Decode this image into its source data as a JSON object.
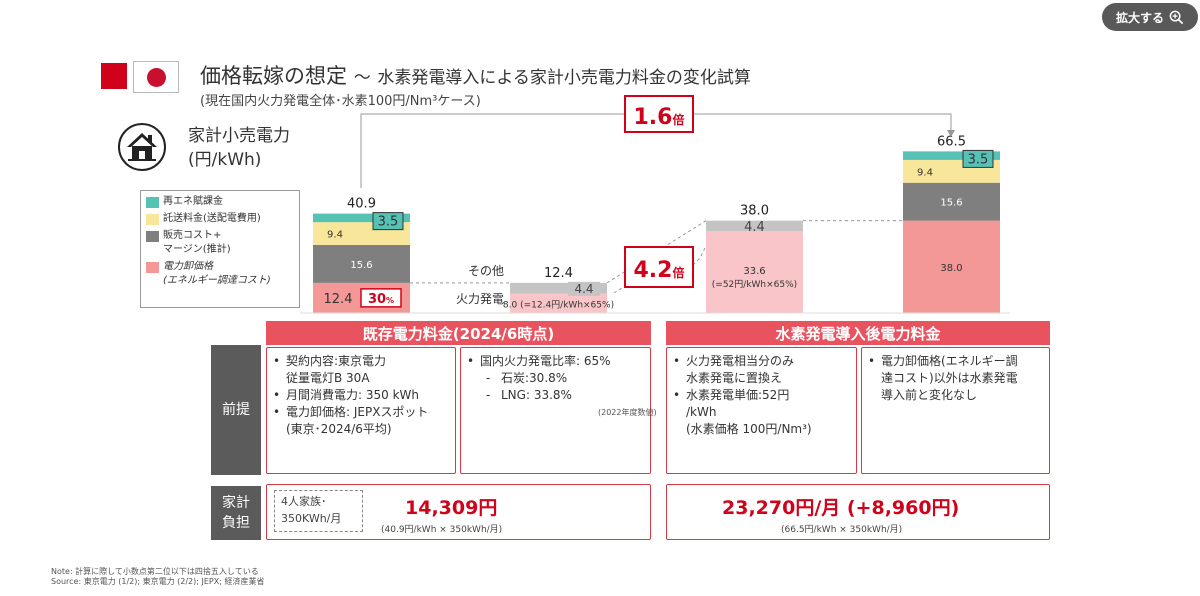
{
  "zoom_button": {
    "label": "拡大する"
  },
  "title": {
    "main": "価格転嫁の想定",
    "sep": "～",
    "sub": "水素発電導入による家計小売電力料金の変化試算"
  },
  "subtitle": "(現在国内火力発電全体･水素100円/Nm³ケース)",
  "unit_label": {
    "line1": "家計小売電力",
    "line2": "(円/kWh)"
  },
  "legend": [
    {
      "label": "再エネ賦課金",
      "color": "#56c1b5"
    },
    {
      "label": "託送料金(送配電費用)",
      "color": "#f8e69a"
    },
    {
      "label": "販売コスト+\nマージン(推計)",
      "color": "#7f7f7f"
    },
    {
      "label": "電力卸価格\n(エネルギー調達コスト)",
      "color": "#f39797"
    }
  ],
  "chart_data": {
    "type": "bar",
    "stacked": true,
    "bars": [
      {
        "total_label": "40.9",
        "segments": [
          {
            "series": "電力卸価格",
            "value": 12.4,
            "label": "12.4"
          },
          {
            "series": "販売コスト+マージン",
            "value": 15.6,
            "label": "15.6"
          },
          {
            "series": "託送料金",
            "value": 9.4,
            "label": "9.4"
          },
          {
            "series": "再エネ賦課金",
            "value": 3.5,
            "label": "3.5"
          }
        ]
      },
      {
        "total_label": "12.4",
        "segments": [
          {
            "series": "火力発電",
            "value": 8.0,
            "label": "8.0 (=12.4円/kWh×65%)"
          },
          {
            "series": "その他",
            "value": 4.4,
            "label": "4.4"
          }
        ]
      },
      {
        "total_label": "38.0",
        "segments": [
          {
            "series": "水素発電",
            "value": 33.6,
            "label": "33.6"
          },
          {
            "series": "その他",
            "value": 4.4,
            "label": "4.4"
          }
        ]
      },
      {
        "total_label": "66.5",
        "segments": [
          {
            "series": "電力卸価格",
            "value": 38.0,
            "label": "38.0"
          },
          {
            "series": "販売コスト+マージン",
            "value": 15.6,
            "label": "15.6"
          },
          {
            "series": "託送料金",
            "value": 9.4,
            "label": "9.4"
          },
          {
            "series": "再エネ賦課金",
            "value": 3.5,
            "label": "3.5"
          }
        ]
      }
    ],
    "annotations": {
      "pct_box": {
        "value": "30",
        "unit": "%"
      },
      "bar2_side_labels": {
        "other": "その他",
        "thermal": "火力発電"
      },
      "bar3_note": "(=52円/kWh×65%)",
      "mult_overall": {
        "value": "1.6",
        "unit": "倍"
      },
      "mult_h2": {
        "value": "4.2",
        "unit": "倍"
      }
    },
    "colors": {
      "renewable": "#56c1b5",
      "transmission": "#f8e69a",
      "sales": "#7f7f7f",
      "wholesale": "#f39797",
      "wholesale_light": "#f9c5c8",
      "other": "#c4c4c4",
      "accent": "#d0021b"
    }
  },
  "sections": {
    "left_head": "既存電力料金(2024/6時点)",
    "right_head": "水素発電導入後電力料金",
    "premise_label": "前提",
    "burden_label": "家計\n負担"
  },
  "premise": {
    "box1": [
      "契約内容:東京電力\n従量電灯B 30A",
      "月間消費電力: 350 kWh",
      "電力卸価格: JEPXスポット\n(東京･2024/6平均)"
    ],
    "box2": {
      "main": "国内火力発電比率: 65%",
      "subs": [
        "石炭:30.8%",
        "LNG: 33.8%"
      ],
      "note": "(2022年度数値)"
    },
    "box3": [
      "火力発電相当分のみ\n水素発電に置換え",
      "水素発電単価:52円\n/kWh\n(水素価格 100円/Nm³)"
    ],
    "box4": [
      "電力卸価格(エネルギー調\n達コスト)以外は水素発電\n導入前と変化なし"
    ]
  },
  "burden": {
    "household": "4人家族･\n350KWh/月",
    "left_amount": "14,309円",
    "left_calc": "(40.9円/kWh × 350kWh/月)",
    "right_amount": "23,270円/月 (+8,960円)",
    "right_calc": "(66.5円/kWh × 350kWh/月)"
  },
  "notes": {
    "note": "Note: 計算に際して小数点第二位以下は四捨五入している",
    "source": "Source: 東京電力 (1/2); 東京電力 (2/2); JEPX; 経済産業省"
  }
}
